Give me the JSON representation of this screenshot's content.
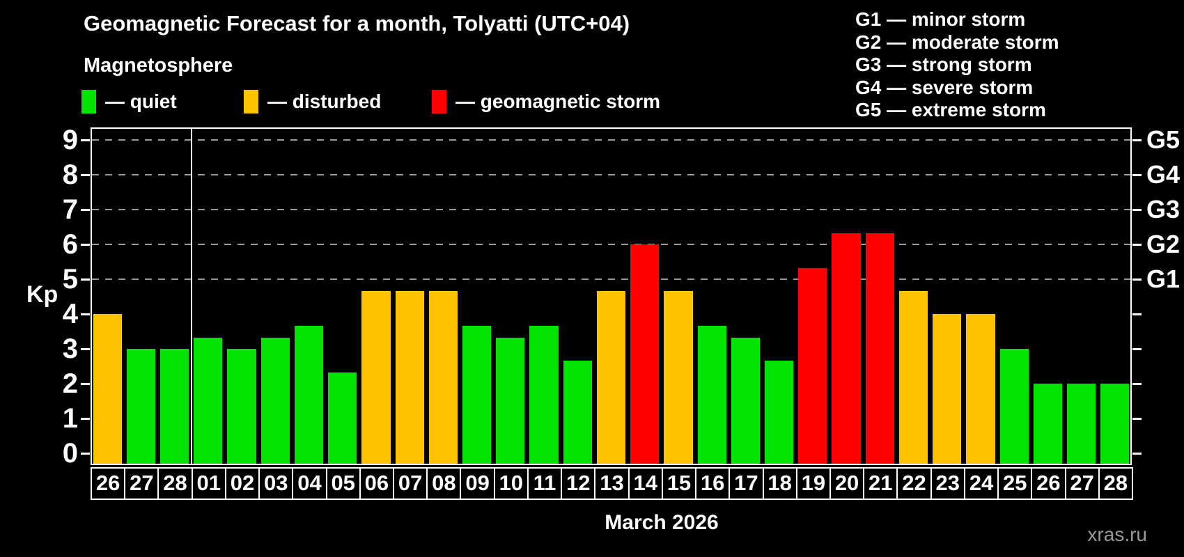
{
  "title": "Geomagnetic Forecast for a month, Tolyatti (UTC+04)",
  "subtitle": "Magnetosphere",
  "legend": [
    {
      "key": "quiet",
      "label": "— quiet",
      "color": "#00e400"
    },
    {
      "key": "disturbed",
      "label": "— disturbed",
      "color": "#ffc200"
    },
    {
      "key": "storm",
      "label": "— geomagnetic storm",
      "color": "#ff0000"
    }
  ],
  "g_scale_legend": [
    "G1 — minor storm",
    "G2 — moderate storm",
    "G3 — strong storm",
    "G4 — severe storm",
    "G5 — extreme storm"
  ],
  "y_axis": {
    "label": "Kp",
    "ticks": [
      0,
      1,
      2,
      3,
      4,
      5,
      6,
      7,
      8,
      9
    ]
  },
  "right_axis": {
    "labels": [
      {
        "kp": 5,
        "label": "G1"
      },
      {
        "kp": 6,
        "label": "G2"
      },
      {
        "kp": 7,
        "label": "G3"
      },
      {
        "kp": 8,
        "label": "G4"
      },
      {
        "kp": 9,
        "label": "G5"
      }
    ]
  },
  "x_axis": {
    "month_label": "March 2026"
  },
  "watermark": "xras.ru",
  "chart_data": {
    "type": "bar",
    "title": "Geomagnetic Forecast for a month, Tolyatti (UTC+04)",
    "xlabel": "March 2026",
    "ylabel": "Kp",
    "ylim": [
      0,
      9.4
    ],
    "grid": "horizontal dashed at Kp 5-9 (G1-G5 levels)",
    "legend_position": "top-left",
    "month_start_index": 3,
    "categories": [
      "26",
      "27",
      "28",
      "01",
      "02",
      "03",
      "04",
      "05",
      "06",
      "07",
      "08",
      "09",
      "10",
      "11",
      "12",
      "13",
      "14",
      "15",
      "16",
      "17",
      "18",
      "19",
      "20",
      "21",
      "22",
      "23",
      "24",
      "25",
      "26",
      "27",
      "28"
    ],
    "values": [
      4.0,
      3.0,
      3.0,
      3.33,
      3.0,
      3.33,
      3.67,
      2.33,
      4.67,
      4.67,
      4.67,
      3.67,
      3.33,
      3.67,
      2.67,
      4.67,
      6.0,
      4.67,
      3.67,
      3.33,
      2.67,
      5.33,
      6.33,
      6.33,
      4.67,
      4.0,
      4.0,
      3.0,
      2.0,
      2.0,
      2.0
    ],
    "statuses": [
      "disturbed",
      "quiet",
      "quiet",
      "quiet",
      "quiet",
      "quiet",
      "quiet",
      "quiet",
      "disturbed",
      "disturbed",
      "disturbed",
      "quiet",
      "quiet",
      "quiet",
      "quiet",
      "disturbed",
      "storm",
      "disturbed",
      "quiet",
      "quiet",
      "quiet",
      "storm",
      "storm",
      "storm",
      "disturbed",
      "disturbed",
      "disturbed",
      "quiet",
      "quiet",
      "quiet",
      "quiet"
    ],
    "colors": {
      "quiet": "#00e400",
      "disturbed": "#ffc200",
      "storm": "#ff0000"
    },
    "gridlines_at": [
      5,
      6,
      7,
      8,
      9
    ]
  }
}
